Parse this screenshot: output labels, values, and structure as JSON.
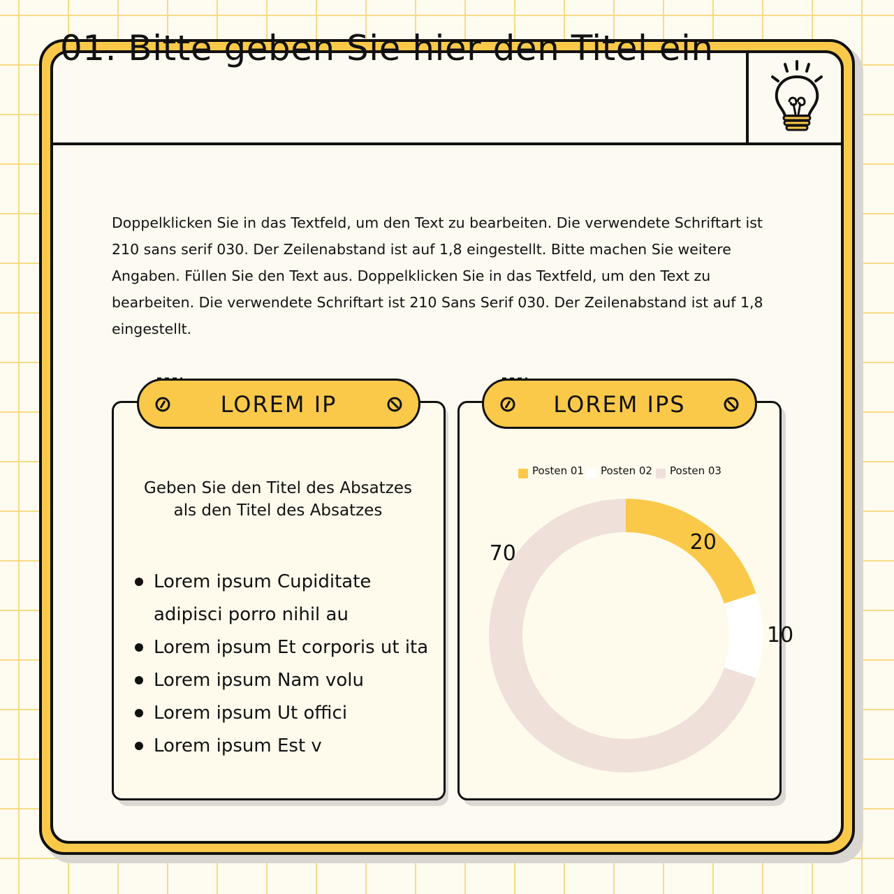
{
  "header": {
    "title": "01. Bitte geben Sie hier den Titel ein"
  },
  "intro": {
    "text": "Doppelklicken Sie in das Textfeld, um den Text zu bearbeiten. Die verwendete Schriftart ist 210 sans serif 030. Der Zeilenabstand ist auf 1,8 eingestellt. Bitte machen Sie weitere Angaben. Füllen Sie den Text aus. Doppelklicken Sie in das Textfeld, um den Text zu bearbeiten. Die verwendete Schriftart ist 210 Sans Serif 030. Der Zeilenabstand ist auf 1,8 eingestellt."
  },
  "left_card": {
    "label": "LOREM IP",
    "paragraph_title": "Geben Sie den Titel des Absatzes als den Titel des Absatzes",
    "bullets": [
      "Lorem ipsum Cupiditate adipisci porro nihil au",
      "Lorem ipsum Et corporis ut ita",
      "Lorem ipsum Nam volu",
      "Lorem ipsum Ut offici",
      "Lorem ipsum Est v"
    ]
  },
  "right_card": {
    "label": "LOREM IPS"
  },
  "colors": {
    "accent": "#fbc94a",
    "outline": "#111111",
    "panel": "#fdfbf1"
  },
  "chart_data": {
    "type": "pie",
    "style": "donut",
    "categories": [
      "Posten 01",
      "Posten 02",
      "Posten 03"
    ],
    "values": [
      20,
      10,
      70
    ],
    "colors": [
      "#fbc94a",
      "#ffffff",
      "#efe0da"
    ],
    "data_labels": [
      "20",
      "10",
      "70"
    ],
    "legend_position": "top"
  }
}
